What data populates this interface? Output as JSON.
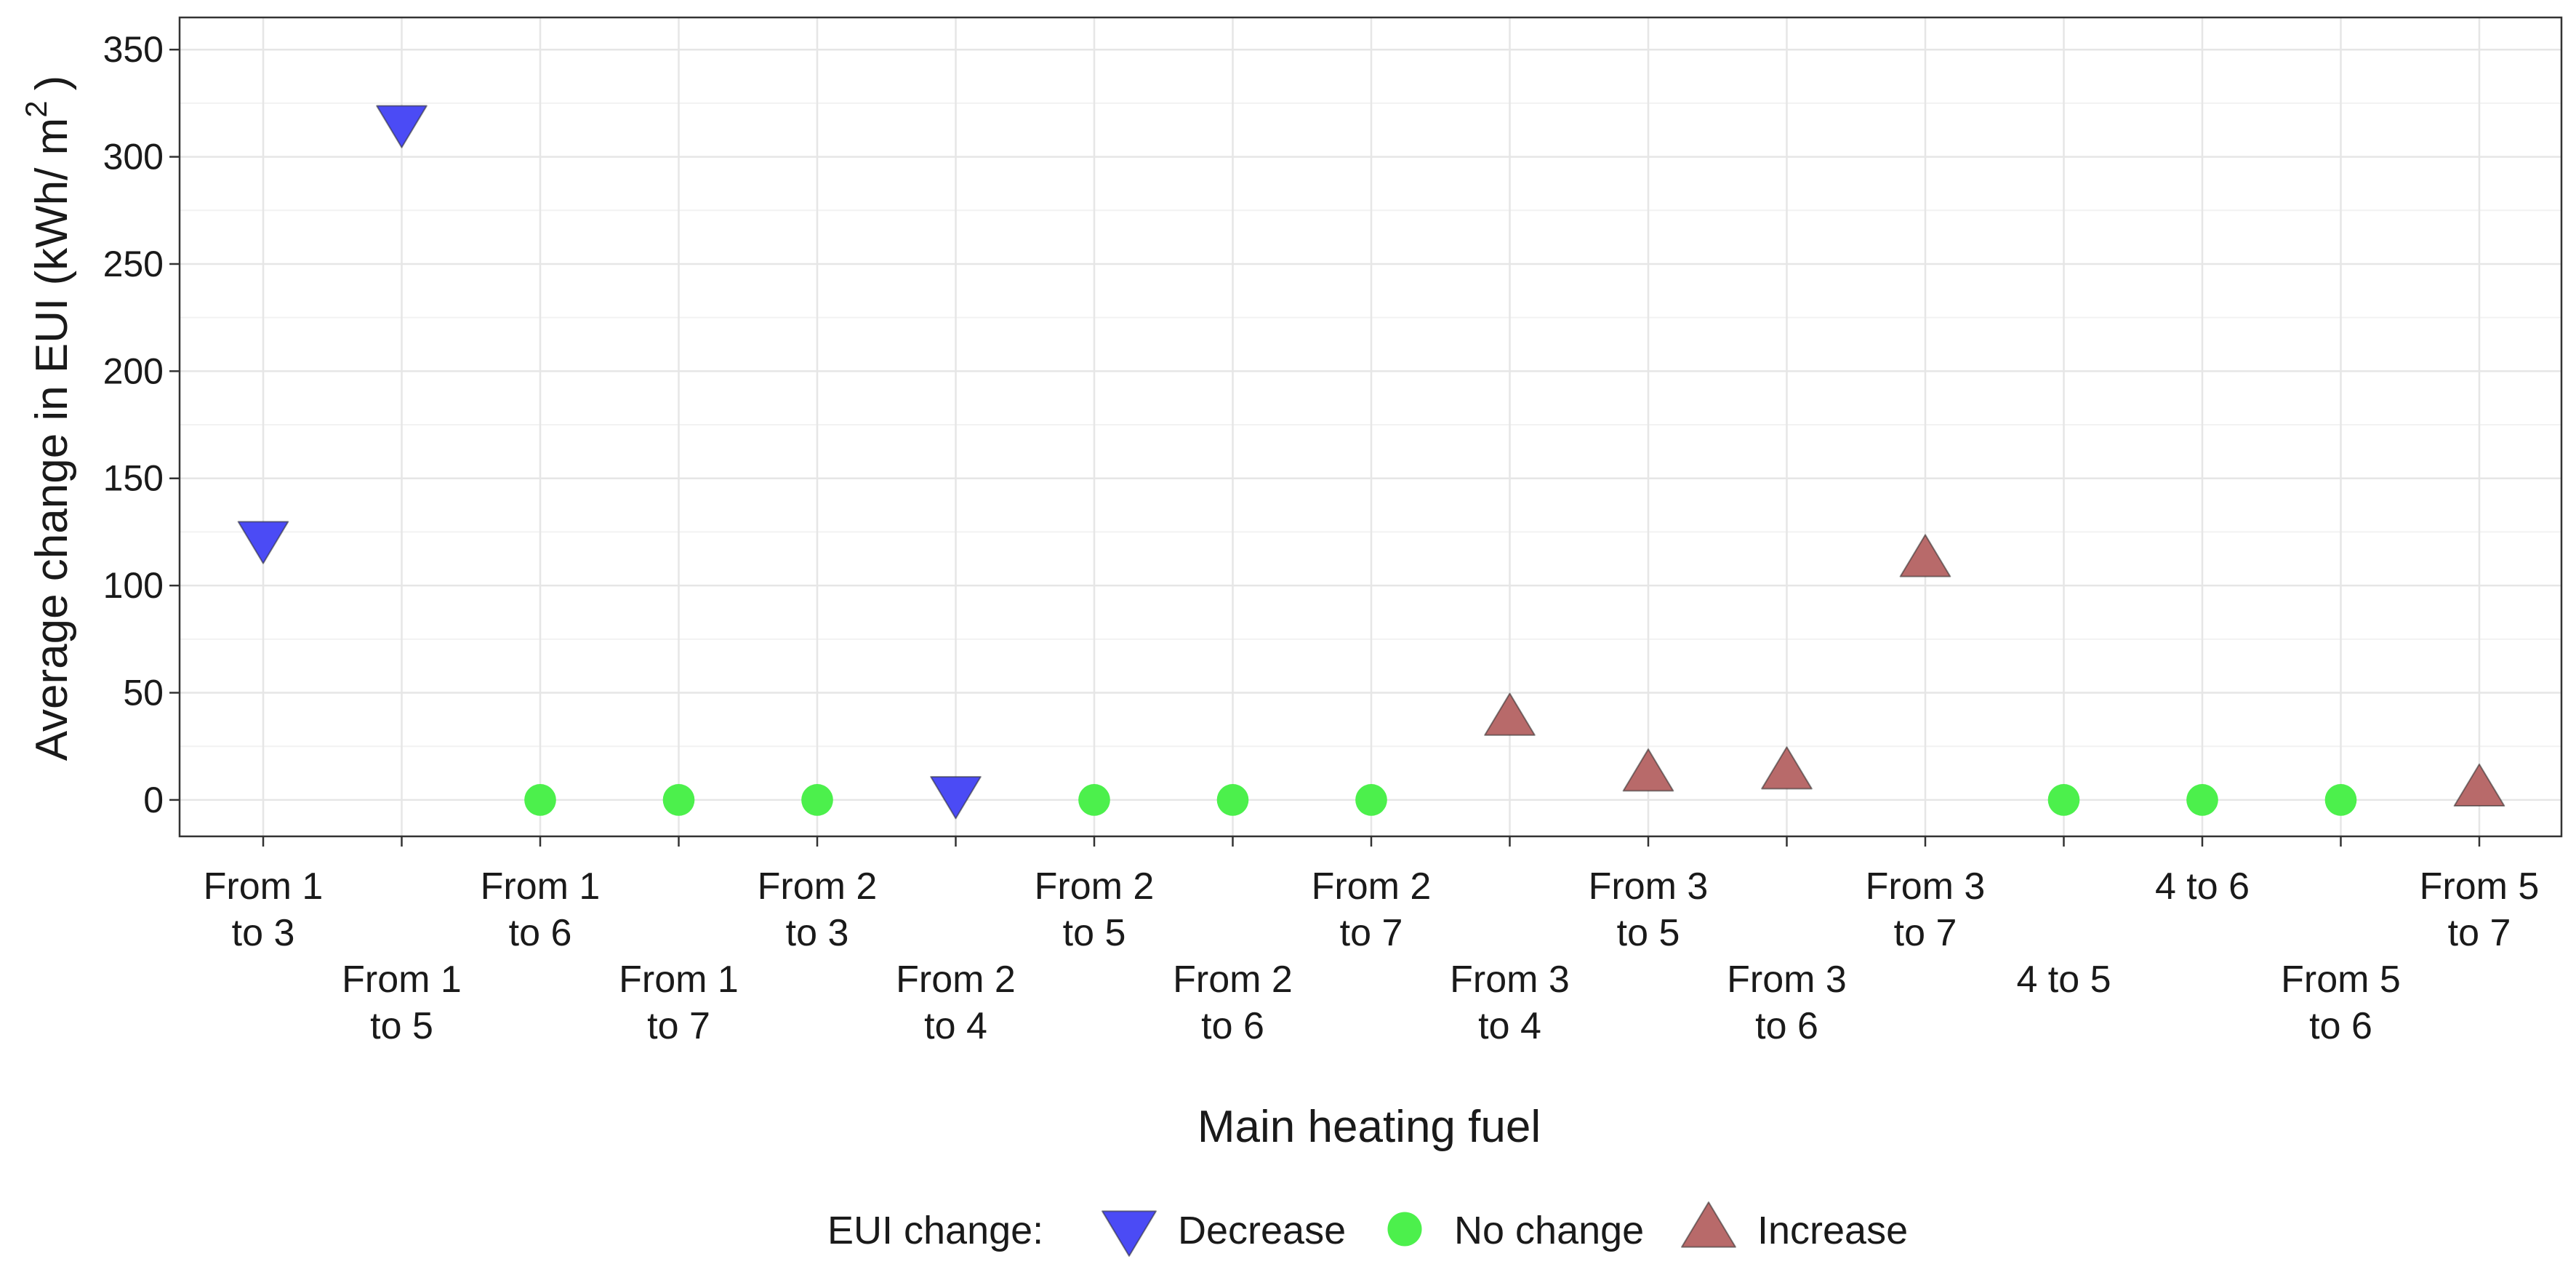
{
  "chart_data": {
    "type": "scatter",
    "title": "",
    "xlabel": "Main heating fuel",
    "ylabel": "Average change in EUI (kWh/ m",
    "ylabel_superscript": "2",
    "ylabel_suffix": ")",
    "ylim": [
      -17,
      365
    ],
    "yticks": [
      0,
      50,
      100,
      150,
      200,
      250,
      300,
      350
    ],
    "grid": true,
    "categories": [
      [
        "From 1",
        "to 3"
      ],
      [
        "From 1",
        "to 5"
      ],
      [
        "From 1",
        "to 6"
      ],
      [
        "From 1",
        "to 7"
      ],
      [
        "From 2",
        "to 3"
      ],
      [
        "From 2",
        "to 4"
      ],
      [
        "From 2",
        "to 5"
      ],
      [
        "From 2",
        "to 6"
      ],
      [
        "From 2",
        "to 7"
      ],
      [
        "From 3",
        "to 4"
      ],
      [
        "From 3",
        "to 5"
      ],
      [
        "From 3",
        "to 6"
      ],
      [
        "From 3",
        "to 7"
      ],
      [
        "4 to 5"
      ],
      [
        "4 to 6"
      ],
      [
        "From 5",
        "to 6"
      ],
      [
        "From 5",
        "to 7"
      ]
    ],
    "points": [
      {
        "x": 0,
        "y": 122,
        "group": "Decrease"
      },
      {
        "x": 1,
        "y": 316,
        "group": "Decrease"
      },
      {
        "x": 2,
        "y": 0,
        "group": "No change"
      },
      {
        "x": 3,
        "y": 0,
        "group": "No change"
      },
      {
        "x": 4,
        "y": 0,
        "group": "No change"
      },
      {
        "x": 5,
        "y": 3,
        "group": "Decrease"
      },
      {
        "x": 6,
        "y": 0,
        "group": "No change"
      },
      {
        "x": 7,
        "y": 0,
        "group": "No change"
      },
      {
        "x": 8,
        "y": 0,
        "group": "No change"
      },
      {
        "x": 9,
        "y": 38,
        "group": "Increase"
      },
      {
        "x": 10,
        "y": 12,
        "group": "Increase"
      },
      {
        "x": 11,
        "y": 13,
        "group": "Increase"
      },
      {
        "x": 12,
        "y": 112,
        "group": "Increase"
      },
      {
        "x": 13,
        "y": 0,
        "group": "No change"
      },
      {
        "x": 14,
        "y": 0,
        "group": "No change"
      },
      {
        "x": 15,
        "y": 0,
        "group": "No change"
      },
      {
        "x": 16,
        "y": 5,
        "group": "Increase"
      }
    ],
    "legend": {
      "title": "EUI change:",
      "placement": "bottom",
      "entries": [
        {
          "name": "Decrease",
          "shape": "triangle-down",
          "color": "#4b4bf5"
        },
        {
          "name": "No change",
          "shape": "circle",
          "color": "#4cf04c"
        },
        {
          "name": "Increase",
          "shape": "triangle-up",
          "color": "#b86a6a"
        }
      ]
    }
  }
}
